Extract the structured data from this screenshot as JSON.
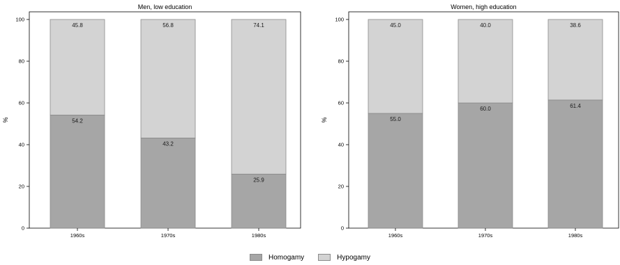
{
  "chart_data": [
    {
      "type": "bar",
      "stacked": true,
      "title": "Men, low education",
      "ylabel": "%",
      "xlabel": "",
      "ylim": [
        0,
        100
      ],
      "yticks": [
        "0",
        "20",
        "40",
        "60",
        "80",
        "100"
      ],
      "categories": [
        "1960s",
        "1970s",
        "1980s"
      ],
      "series": [
        {
          "name": "Homogamy",
          "values": [
            54.2,
            43.2,
            25.9
          ],
          "labels": [
            "54.2",
            "43.2",
            "25.9"
          ]
        },
        {
          "name": "Hypogamy",
          "values": [
            45.8,
            56.8,
            74.1
          ],
          "labels": [
            "45.8",
            "56.8",
            "74.1"
          ]
        }
      ],
      "grid": false,
      "legend": "bottom"
    },
    {
      "type": "bar",
      "stacked": true,
      "title": "Women, high education",
      "ylabel": "%",
      "xlabel": "",
      "ylim": [
        0,
        100
      ],
      "yticks": [
        "0",
        "20",
        "40",
        "60",
        "80",
        "100"
      ],
      "categories": [
        "1960s",
        "1970s",
        "1980s"
      ],
      "series": [
        {
          "name": "Homogamy",
          "values": [
            55.0,
            60.0,
            61.4
          ],
          "labels": [
            "55.0",
            "60.0",
            "61.4"
          ]
        },
        {
          "name": "Hypogamy",
          "values": [
            45.0,
            40.0,
            38.6
          ],
          "labels": [
            "45.0",
            "40.0",
            "38.6"
          ]
        }
      ],
      "grid": false,
      "legend": "bottom"
    }
  ],
  "legend": {
    "items": [
      {
        "label": "Homogamy",
        "color": "#a6a6a6"
      },
      {
        "label": "Hypogamy",
        "color": "#d3d3d3"
      }
    ]
  },
  "colors": {
    "homogamy": "#a6a6a6",
    "hypogamy": "#d3d3d3",
    "bar_edge": "#8a8a8a",
    "axis": "#000000"
  }
}
